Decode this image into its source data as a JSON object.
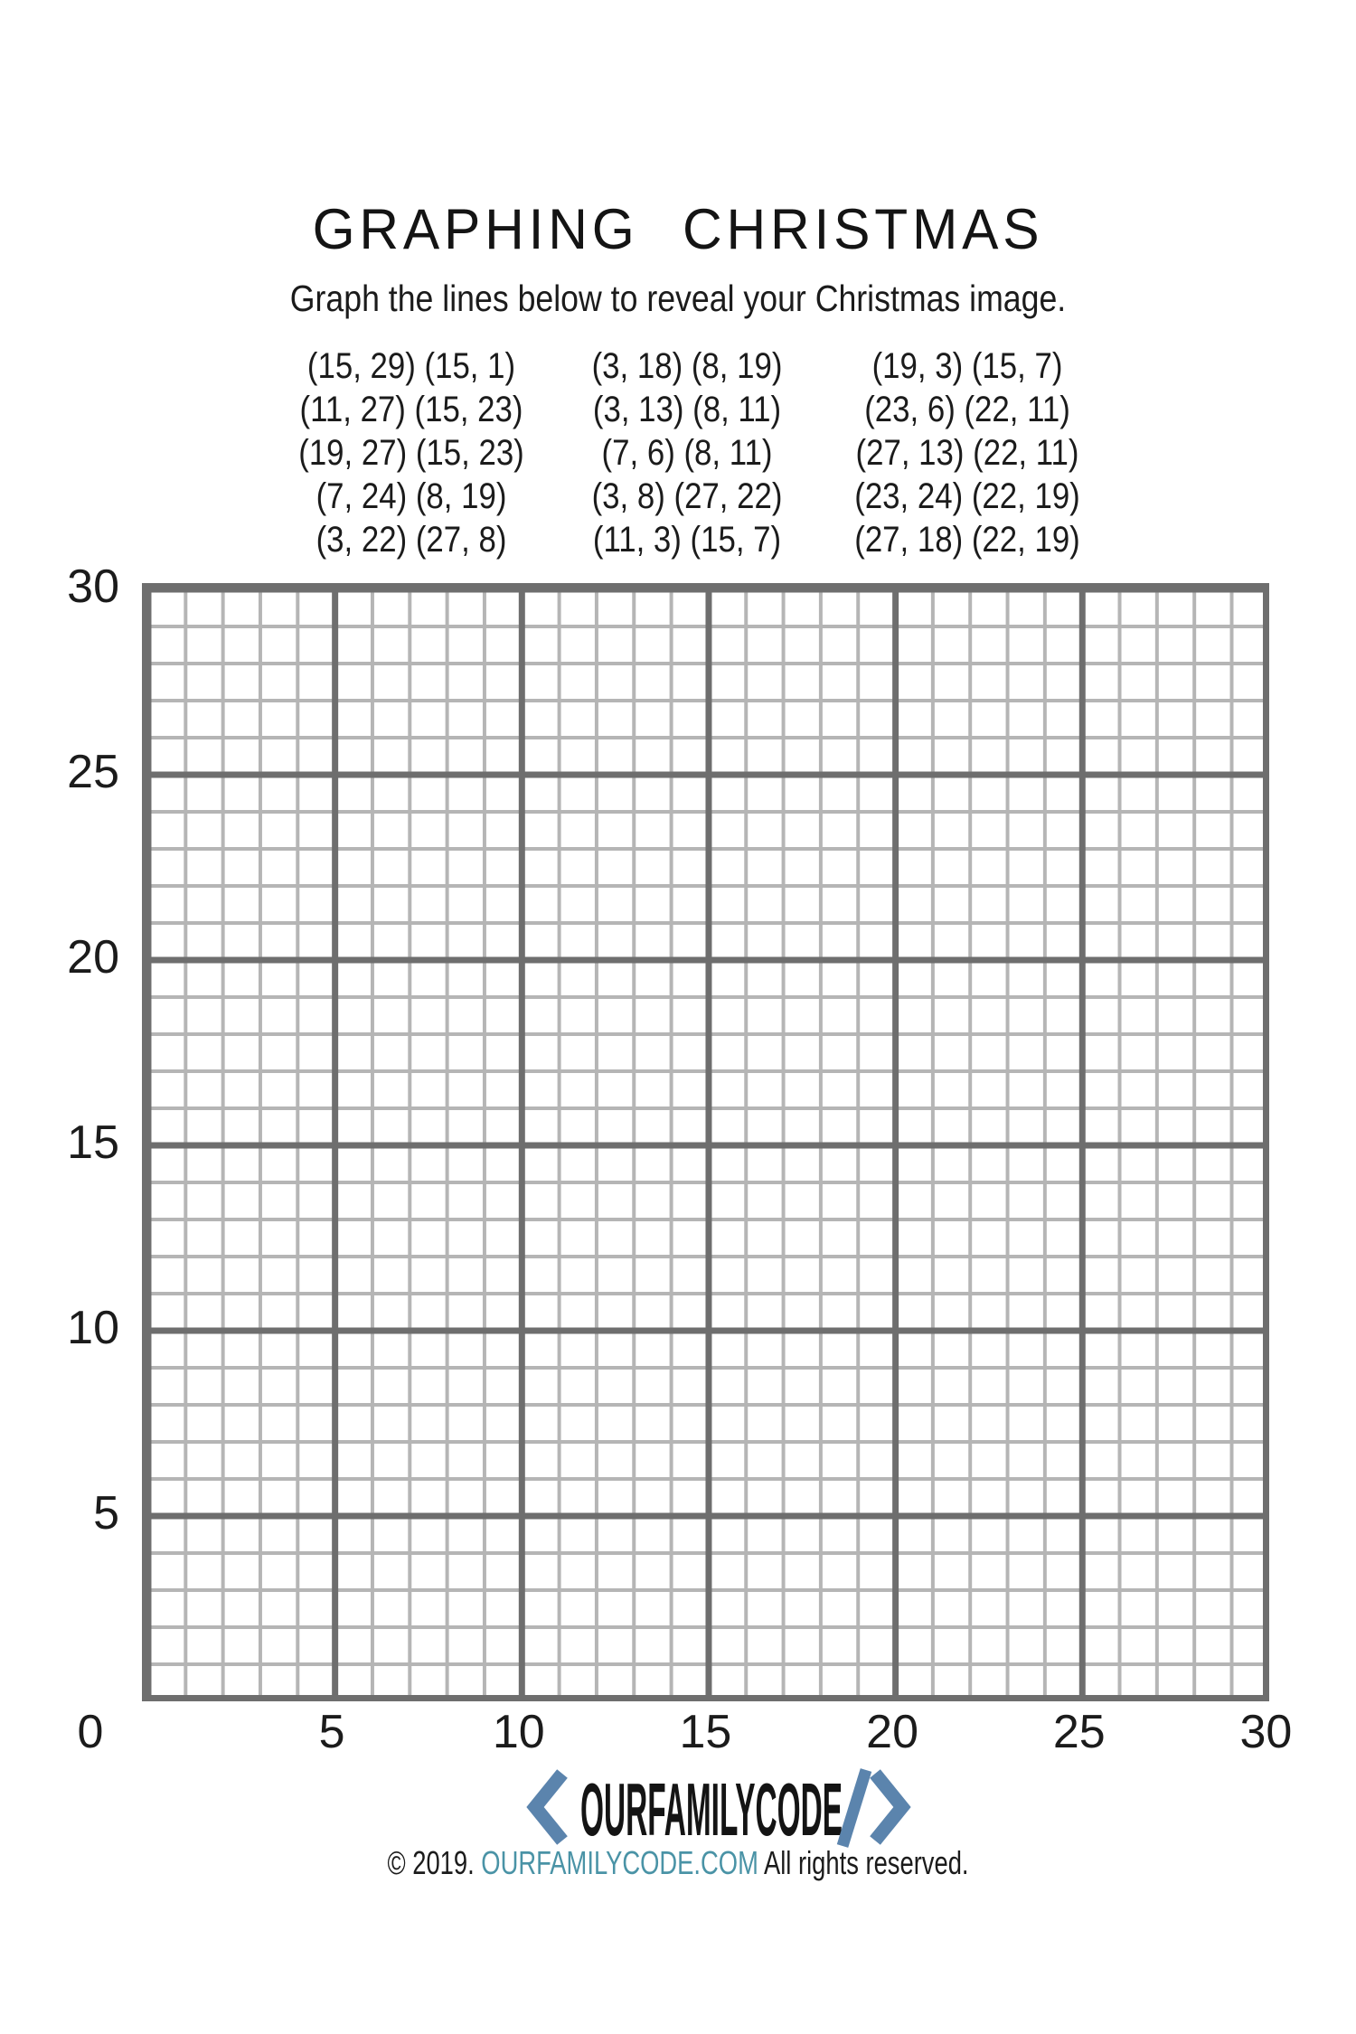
{
  "page": {
    "title": "GRAPHING CHRISTMAS",
    "subtitle": "Graph the lines below to reveal your Christmas image."
  },
  "chart_data": {
    "type": "line",
    "title": "GRAPHING CHRISTMAS",
    "instructions": "Graph the lines below to reveal your Christmas image.",
    "axis": {
      "xlim": [
        0,
        30
      ],
      "ylim": [
        0,
        30
      ],
      "x_ticks": [
        0,
        5,
        10,
        15,
        20,
        25,
        30
      ],
      "y_ticks": [
        0,
        5,
        10,
        15,
        20,
        25,
        30
      ],
      "minor_step": 1,
      "major_step": 5,
      "grid": true
    },
    "segment_columns": [
      [
        [
          [
            15,
            29
          ],
          [
            15,
            1
          ]
        ],
        [
          [
            11,
            27
          ],
          [
            15,
            23
          ]
        ],
        [
          [
            19,
            27
          ],
          [
            15,
            23
          ]
        ],
        [
          [
            7,
            24
          ],
          [
            8,
            19
          ]
        ],
        [
          [
            3,
            22
          ],
          [
            27,
            8
          ]
        ]
      ],
      [
        [
          [
            3,
            18
          ],
          [
            8,
            19
          ]
        ],
        [
          [
            3,
            13
          ],
          [
            8,
            11
          ]
        ],
        [
          [
            7,
            6
          ],
          [
            8,
            11
          ]
        ],
        [
          [
            3,
            8
          ],
          [
            27,
            22
          ]
        ],
        [
          [
            11,
            3
          ],
          [
            15,
            7
          ]
        ]
      ],
      [
        [
          [
            19,
            3
          ],
          [
            15,
            7
          ]
        ],
        [
          [
            23,
            6
          ],
          [
            22,
            11
          ]
        ],
        [
          [
            27,
            13
          ],
          [
            22,
            11
          ]
        ],
        [
          [
            23,
            24
          ],
          [
            22,
            19
          ]
        ],
        [
          [
            27,
            18
          ],
          [
            22,
            19
          ]
        ]
      ]
    ]
  },
  "footer": {
    "logo": {
      "left_bracket": "<",
      "name": "OURFAMILYCODE",
      "slash": "/",
      "right_bracket": ">"
    },
    "copyright_prefix": "© 2019. ",
    "copyright_link": "OURFAMILYCODE.COM",
    "copyright_suffix": " All rights reserved."
  },
  "colors": {
    "grid_minor": "#b5b5b5",
    "grid_major": "#6e6e6e",
    "logo_blue": "#5b84ad",
    "link_teal": "#4a93a6",
    "text": "#1b1b1b"
  }
}
